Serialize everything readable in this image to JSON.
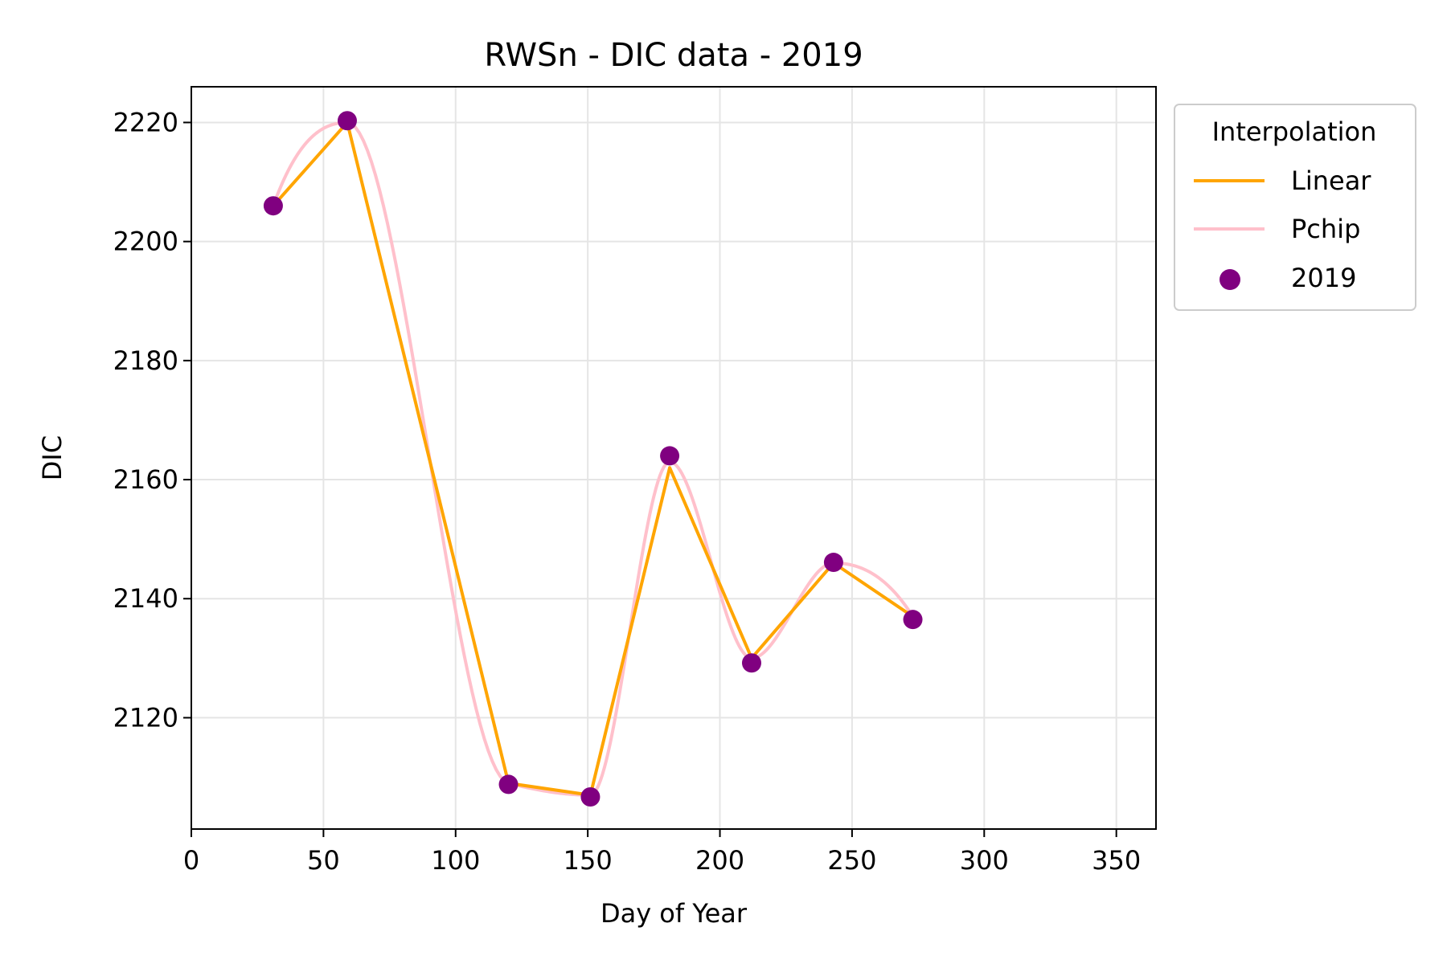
{
  "chart_data": {
    "type": "line",
    "title": "RWSn - DIC data - 2019",
    "xlabel": "Day of Year",
    "ylabel": "DIC",
    "xlim": [
      0,
      365
    ],
    "ylim": [
      2101.3,
      2226.0
    ],
    "xticks": [
      0,
      50,
      100,
      150,
      200,
      250,
      300,
      350
    ],
    "yticks": [
      2120,
      2140,
      2160,
      2180,
      2200,
      2220
    ],
    "grid": true,
    "legend": {
      "title": "Interpolation",
      "placement": "outside-right-top"
    },
    "series": [
      {
        "name": "Linear",
        "kind": "line",
        "color": "#ffa500",
        "x": [
          31,
          59,
          120,
          151,
          181,
          212,
          243,
          273
        ],
        "y": [
          2206,
          2220,
          2109,
          2107,
          2162,
          2130,
          2146,
          2137
        ]
      },
      {
        "name": "Pchip",
        "kind": "smooth-line",
        "color": "#ffc0cb",
        "x": [
          31,
          59,
          120,
          151,
          181,
          212,
          243,
          273
        ],
        "y": [
          2206,
          2220,
          2109,
          2107,
          2163,
          2130,
          2146,
          2137
        ]
      },
      {
        "name": "2019",
        "kind": "scatter",
        "color": "#800080",
        "x": [
          31,
          59,
          120,
          151,
          181,
          212,
          243,
          273
        ],
        "y": [
          2206.0,
          2220.3,
          2108.8,
          2106.7,
          2164.0,
          2129.2,
          2146.1,
          2136.5
        ]
      }
    ]
  }
}
